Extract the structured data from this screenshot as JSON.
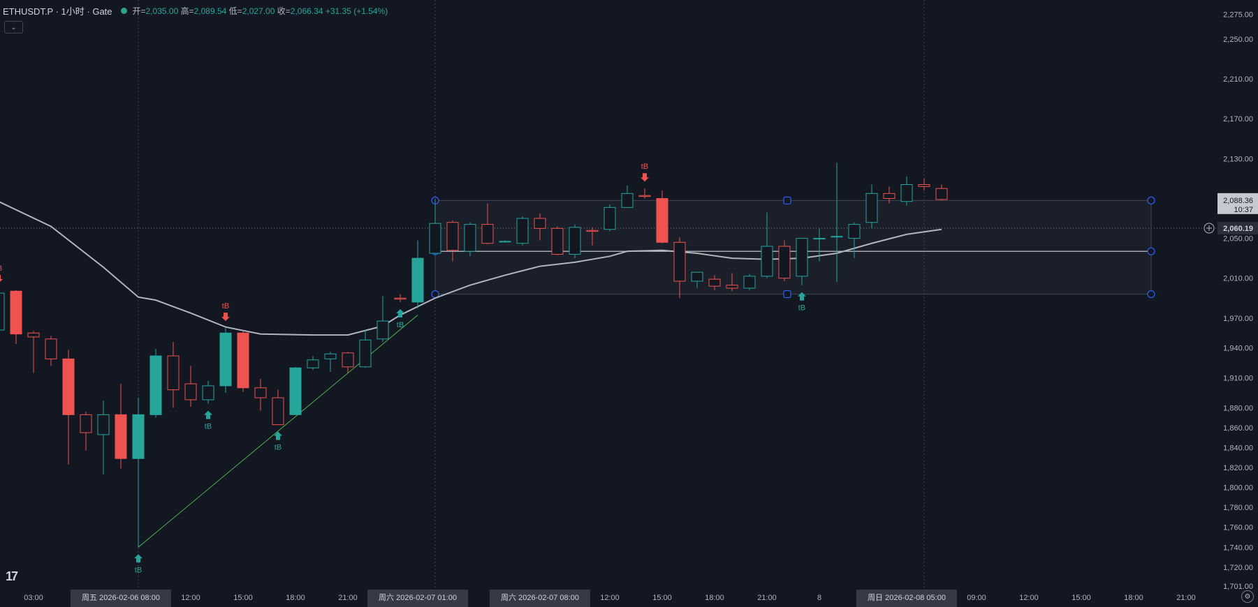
{
  "header": {
    "title": "ETHUSDT.P · 1小时 · Gate",
    "open_label": "开=",
    "open": "2,035.00",
    "high_label": "高=",
    "high": "2,089.54",
    "low_label": "低=",
    "low": "2,027.00",
    "close_label": "收=",
    "close": "2,066.34",
    "change": "+31.35 (+1.54%)"
  },
  "colors": {
    "up": "#26a69a",
    "down": "#ef5350",
    "ma": "#b2b5be",
    "background": "#131722",
    "box": "#2962ff"
  },
  "icons": {
    "toggle": "chevron-down-icon",
    "logo": "tradingview-logo-icon",
    "settings": "gear-icon",
    "price_add": "plus-circle-icon"
  },
  "price_axis": {
    "ticks": [
      [
        "2,275.00",
        2275
      ],
      [
        "2,250.00",
        2250
      ],
      [
        "2,210.00",
        2210
      ],
      [
        "2,170.00",
        2170
      ],
      [
        "2,130.00",
        2130
      ],
      [
        "2,050.00",
        2050
      ],
      [
        "2,010.00",
        2010
      ],
      [
        "1,970.00",
        1970
      ],
      [
        "1,940.00",
        1940
      ],
      [
        "1,910.00",
        1910
      ],
      [
        "1,880.00",
        1880
      ],
      [
        "1,860.00",
        1860
      ],
      [
        "1,840.00",
        1840
      ],
      [
        "1,820.00",
        1820
      ],
      [
        "1,800.00",
        1800
      ],
      [
        "1,780.00",
        1780
      ],
      [
        "1,760.00",
        1760
      ],
      [
        "1,740.00",
        1740
      ],
      [
        "1,720.00",
        1720
      ],
      [
        "1,701.00",
        1701
      ]
    ],
    "label_upper_price": "2,088.36",
    "label_upper_time": "10:37",
    "label_current": "2,060.19"
  },
  "time_axis": {
    "ticks": [
      [
        "03:00",
        2
      ],
      [
        "12:00",
        11
      ],
      [
        "15:00",
        14
      ],
      [
        "18:00",
        17
      ],
      [
        "21:00",
        20
      ],
      [
        "12:00",
        35
      ],
      [
        "15:00",
        38
      ],
      [
        "18:00",
        41
      ],
      [
        "21:00",
        44
      ],
      [
        "8",
        47
      ],
      [
        "09:00",
        56
      ],
      [
        "12:00",
        59
      ],
      [
        "15:00",
        62
      ],
      [
        "18:00",
        65
      ],
      [
        "21:00",
        68
      ]
    ],
    "highlights": [
      [
        "周五 2026-02-06   08:00",
        7
      ],
      [
        "周六 2026-02-07   01:00",
        24
      ],
      [
        "周六 2026-02-07   08:00",
        31
      ],
      [
        "周日 2026-02-08   05:00",
        52
      ]
    ]
  },
  "signals": [
    {
      "bar": 0,
      "label": "tB",
      "type": "sell"
    },
    {
      "bar": 8,
      "label": "tB",
      "type": "buy"
    },
    {
      "bar": 12,
      "label": "tB",
      "type": "buy"
    },
    {
      "bar": 13,
      "label": "tB",
      "type": "sell"
    },
    {
      "bar": 16,
      "label": "tB",
      "type": "buy"
    },
    {
      "bar": 23,
      "label": "tB",
      "type": "buy"
    },
    {
      "bar": 37,
      "label": "tB",
      "type": "sell"
    },
    {
      "bar": 46,
      "label": "tB",
      "type": "buy"
    }
  ],
  "chart_data": {
    "type": "candlestick",
    "symbol": "ETHUSDT.P",
    "interval": "1小时",
    "ylim": [
      1701,
      2285
    ],
    "x_start": "2026-02-05 23:00",
    "candles": [
      {
        "o": 1958,
        "h": 1998,
        "l": 1950,
        "c": 1995
      },
      {
        "o": 1997,
        "h": 1998,
        "l": 1944,
        "c": 1954
      },
      {
        "o": 1955,
        "h": 1957,
        "l": 1915,
        "c": 1951
      },
      {
        "o": 1949,
        "h": 1952,
        "l": 1922,
        "c": 1929
      },
      {
        "o": 1929,
        "h": 1938,
        "l": 1823,
        "c": 1873
      },
      {
        "o": 1873,
        "h": 1876,
        "l": 1837,
        "c": 1855
      },
      {
        "o": 1853,
        "h": 1887,
        "l": 1813,
        "c": 1873
      },
      {
        "o": 1873,
        "h": 1904,
        "l": 1819,
        "c": 1829
      },
      {
        "o": 1829,
        "h": 1890,
        "l": 1740,
        "c": 1873
      },
      {
        "o": 1873,
        "h": 1939,
        "l": 1870,
        "c": 1932
      },
      {
        "o": 1932,
        "h": 1946,
        "l": 1880,
        "c": 1898
      },
      {
        "o": 1904,
        "h": 1922,
        "l": 1881,
        "c": 1888
      },
      {
        "o": 1888,
        "h": 1907,
        "l": 1884,
        "c": 1902
      },
      {
        "o": 1902,
        "h": 1960,
        "l": 1895,
        "c": 1955
      },
      {
        "o": 1955,
        "h": 1957,
        "l": 1896,
        "c": 1900
      },
      {
        "o": 1900,
        "h": 1909,
        "l": 1877,
        "c": 1890
      },
      {
        "o": 1890,
        "h": 1898,
        "l": 1863,
        "c": 1863
      },
      {
        "o": 1873,
        "h": 1921,
        "l": 1873,
        "c": 1920
      },
      {
        "o": 1920,
        "h": 1932,
        "l": 1918,
        "c": 1928
      },
      {
        "o": 1929,
        "h": 1936,
        "l": 1916,
        "c": 1934
      },
      {
        "o": 1935,
        "h": 1936,
        "l": 1915,
        "c": 1921
      },
      {
        "o": 1921,
        "h": 1958,
        "l": 1920,
        "c": 1948
      },
      {
        "o": 1949,
        "h": 1992,
        "l": 1946,
        "c": 1967
      },
      {
        "o": 1990,
        "h": 1994,
        "l": 1986,
        "c": 1989
      },
      {
        "o": 1986,
        "h": 2048,
        "l": 1980,
        "c": 2030
      },
      {
        "o": 2035,
        "h": 2090,
        "l": 2034,
        "c": 2065
      },
      {
        "o": 2066,
        "h": 2068,
        "l": 2027,
        "c": 2038
      },
      {
        "o": 2037,
        "h": 2066,
        "l": 2032,
        "c": 2064
      },
      {
        "o": 2064,
        "h": 2085,
        "l": 2044,
        "c": 2045
      },
      {
        "o": 2047,
        "h": 2048,
        "l": 2046,
        "c": 2047
      },
      {
        "o": 2045,
        "h": 2072,
        "l": 2043,
        "c": 2070
      },
      {
        "o": 2070,
        "h": 2075,
        "l": 2048,
        "c": 2060
      },
      {
        "o": 2060,
        "h": 2062,
        "l": 2033,
        "c": 2034
      },
      {
        "o": 2034,
        "h": 2064,
        "l": 2030,
        "c": 2061
      },
      {
        "o": 2058,
        "h": 2061,
        "l": 2043,
        "c": 2057
      },
      {
        "o": 2059,
        "h": 2084,
        "l": 2057,
        "c": 2081
      },
      {
        "o": 2081,
        "h": 2103,
        "l": 2081,
        "c": 2095
      },
      {
        "o": 2093,
        "h": 2100,
        "l": 2090,
        "c": 2092
      },
      {
        "o": 2090,
        "h": 2098,
        "l": 2045,
        "c": 2046
      },
      {
        "o": 2046,
        "h": 2051,
        "l": 1990,
        "c": 2007
      },
      {
        "o": 2007,
        "h": 2016,
        "l": 2000,
        "c": 2016
      },
      {
        "o": 2009,
        "h": 2013,
        "l": 1998,
        "c": 2002
      },
      {
        "o": 2003,
        "h": 2015,
        "l": 1997,
        "c": 2000
      },
      {
        "o": 2000,
        "h": 2014,
        "l": 1998,
        "c": 2012
      },
      {
        "o": 2012,
        "h": 2076,
        "l": 2010,
        "c": 2042
      },
      {
        "o": 2042,
        "h": 2048,
        "l": 2007,
        "c": 2010
      },
      {
        "o": 2012,
        "h": 2050,
        "l": 2003,
        "c": 2050
      },
      {
        "o": 2050,
        "h": 2060,
        "l": 2027,
        "c": 2050
      },
      {
        "o": 2052,
        "h": 2126,
        "l": 2006,
        "c": 2052
      },
      {
        "o": 2050,
        "h": 2066,
        "l": 2030,
        "c": 2064
      },
      {
        "o": 2066,
        "h": 2104,
        "l": 2060,
        "c": 2095
      },
      {
        "o": 2095,
        "h": 2102,
        "l": 2085,
        "c": 2090
      },
      {
        "o": 2087,
        "h": 2112,
        "l": 2083,
        "c": 2104
      },
      {
        "o": 2104,
        "h": 2110,
        "l": 2098,
        "c": 2102
      },
      {
        "o": 2100,
        "h": 2104,
        "l": 2088,
        "c": 2089
      }
    ],
    "ma": [
      [
        0,
        2087
      ],
      [
        3,
        2062
      ],
      [
        6,
        2021
      ],
      [
        8,
        1991
      ],
      [
        9,
        1988
      ],
      [
        11,
        1975
      ],
      [
        13,
        1961
      ],
      [
        15,
        1954
      ],
      [
        18,
        1953
      ],
      [
        20,
        1953
      ],
      [
        22,
        1962
      ],
      [
        23,
        1973
      ],
      [
        25,
        1990
      ],
      [
        27,
        2003
      ],
      [
        29,
        2013
      ],
      [
        31,
        2022
      ],
      [
        33,
        2026
      ],
      [
        35,
        2032
      ],
      [
        36,
        2037
      ],
      [
        38,
        2038
      ],
      [
        40,
        2035
      ],
      [
        42,
        2030
      ],
      [
        44,
        2029
      ],
      [
        46,
        2030
      ],
      [
        48,
        2035
      ],
      [
        50,
        2045
      ],
      [
        52,
        2054
      ],
      [
        54,
        2059
      ]
    ],
    "trendline": [
      [
        8,
        1740
      ],
      [
        24,
        1973
      ]
    ],
    "range_box": {
      "top": 2088,
      "mid": 2037,
      "bottom": 1994,
      "from_bar": 25,
      "to_bar": 66
    }
  }
}
